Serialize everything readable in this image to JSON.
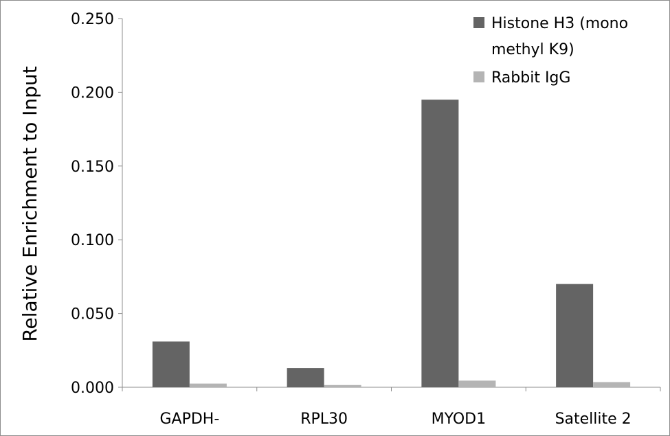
{
  "chart_data": {
    "type": "bar",
    "title": "",
    "xlabel": "",
    "ylabel": "Relative Enrichment to Input",
    "categories": [
      "GAPDH-",
      "RPL30",
      "MYOD1",
      "Satellite 2"
    ],
    "series": [
      {
        "name": "Histone H3 (mono methyl K9)",
        "color": "#646464",
        "values": [
          0.031,
          0.013,
          0.195,
          0.07
        ]
      },
      {
        "name": "Rabbit IgG",
        "color": "#b4b4b4",
        "values": [
          0.0025,
          0.0015,
          0.0045,
          0.0035
        ]
      }
    ],
    "ylim": [
      0,
      0.25
    ],
    "yticks": [
      "0.000",
      "0.050",
      "0.100",
      "0.150",
      "0.200",
      "0.250"
    ],
    "grid": false,
    "legend_position": "top-right",
    "legend": {
      "entries": [
        {
          "lines": [
            "Histone H3 (mono",
            "methyl K9)"
          ],
          "color": "#646464"
        },
        {
          "lines": [
            "Rabbit IgG"
          ],
          "color": "#b4b4b4"
        }
      ]
    }
  }
}
